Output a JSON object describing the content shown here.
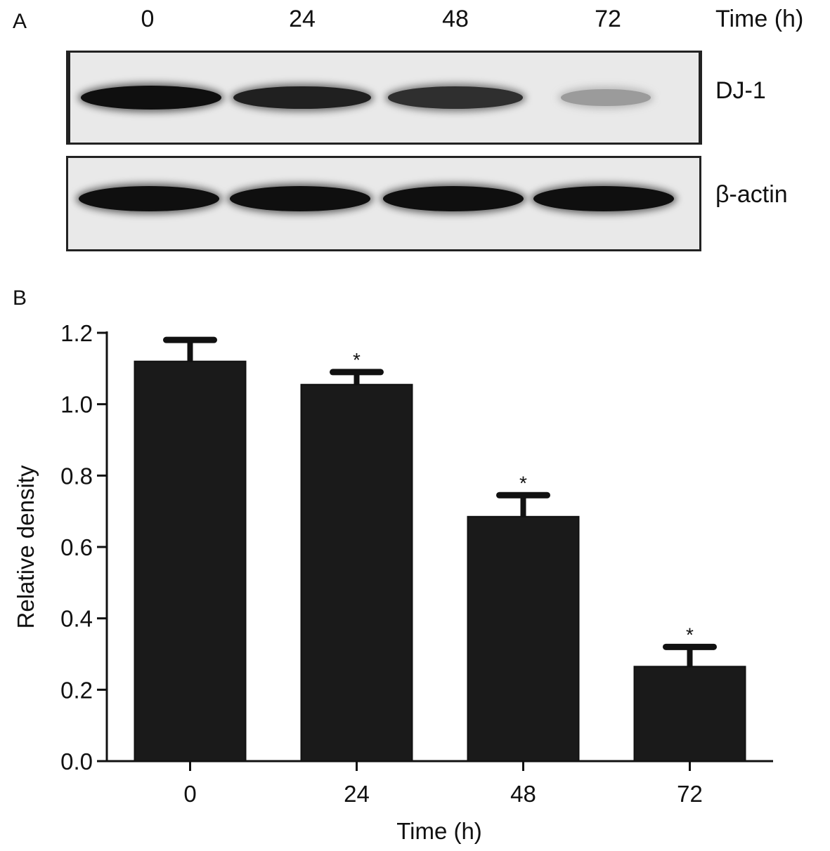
{
  "panel_a": {
    "label": "A",
    "time_label": "Time (h)",
    "lanes": [
      "0",
      "24",
      "48",
      "72"
    ],
    "blots": [
      {
        "name": "DJ-1",
        "intensity": [
          1.0,
          0.92,
          0.85,
          0.35
        ]
      },
      {
        "name": "β-actin",
        "intensity": [
          1.0,
          1.0,
          1.0,
          1.0
        ]
      }
    ]
  },
  "panel_b": {
    "label": "B"
  },
  "chart_data": {
    "type": "bar",
    "categories": [
      "0",
      "24",
      "48",
      "72"
    ],
    "values": [
      1.12,
      1.055,
      0.685,
      0.265
    ],
    "error": [
      0.06,
      0.035,
      0.06,
      0.055
    ],
    "significance": [
      "",
      "*",
      "*",
      "*"
    ],
    "xlabel": "Time (h)",
    "ylabel": "Relative density",
    "ylim": [
      0,
      1.2
    ],
    "yticks": [
      "0.0",
      "0.2",
      "0.4",
      "0.6",
      "0.8",
      "1.0",
      "1.2"
    ],
    "bar_color": "#1a1a1a",
    "grid": false
  }
}
